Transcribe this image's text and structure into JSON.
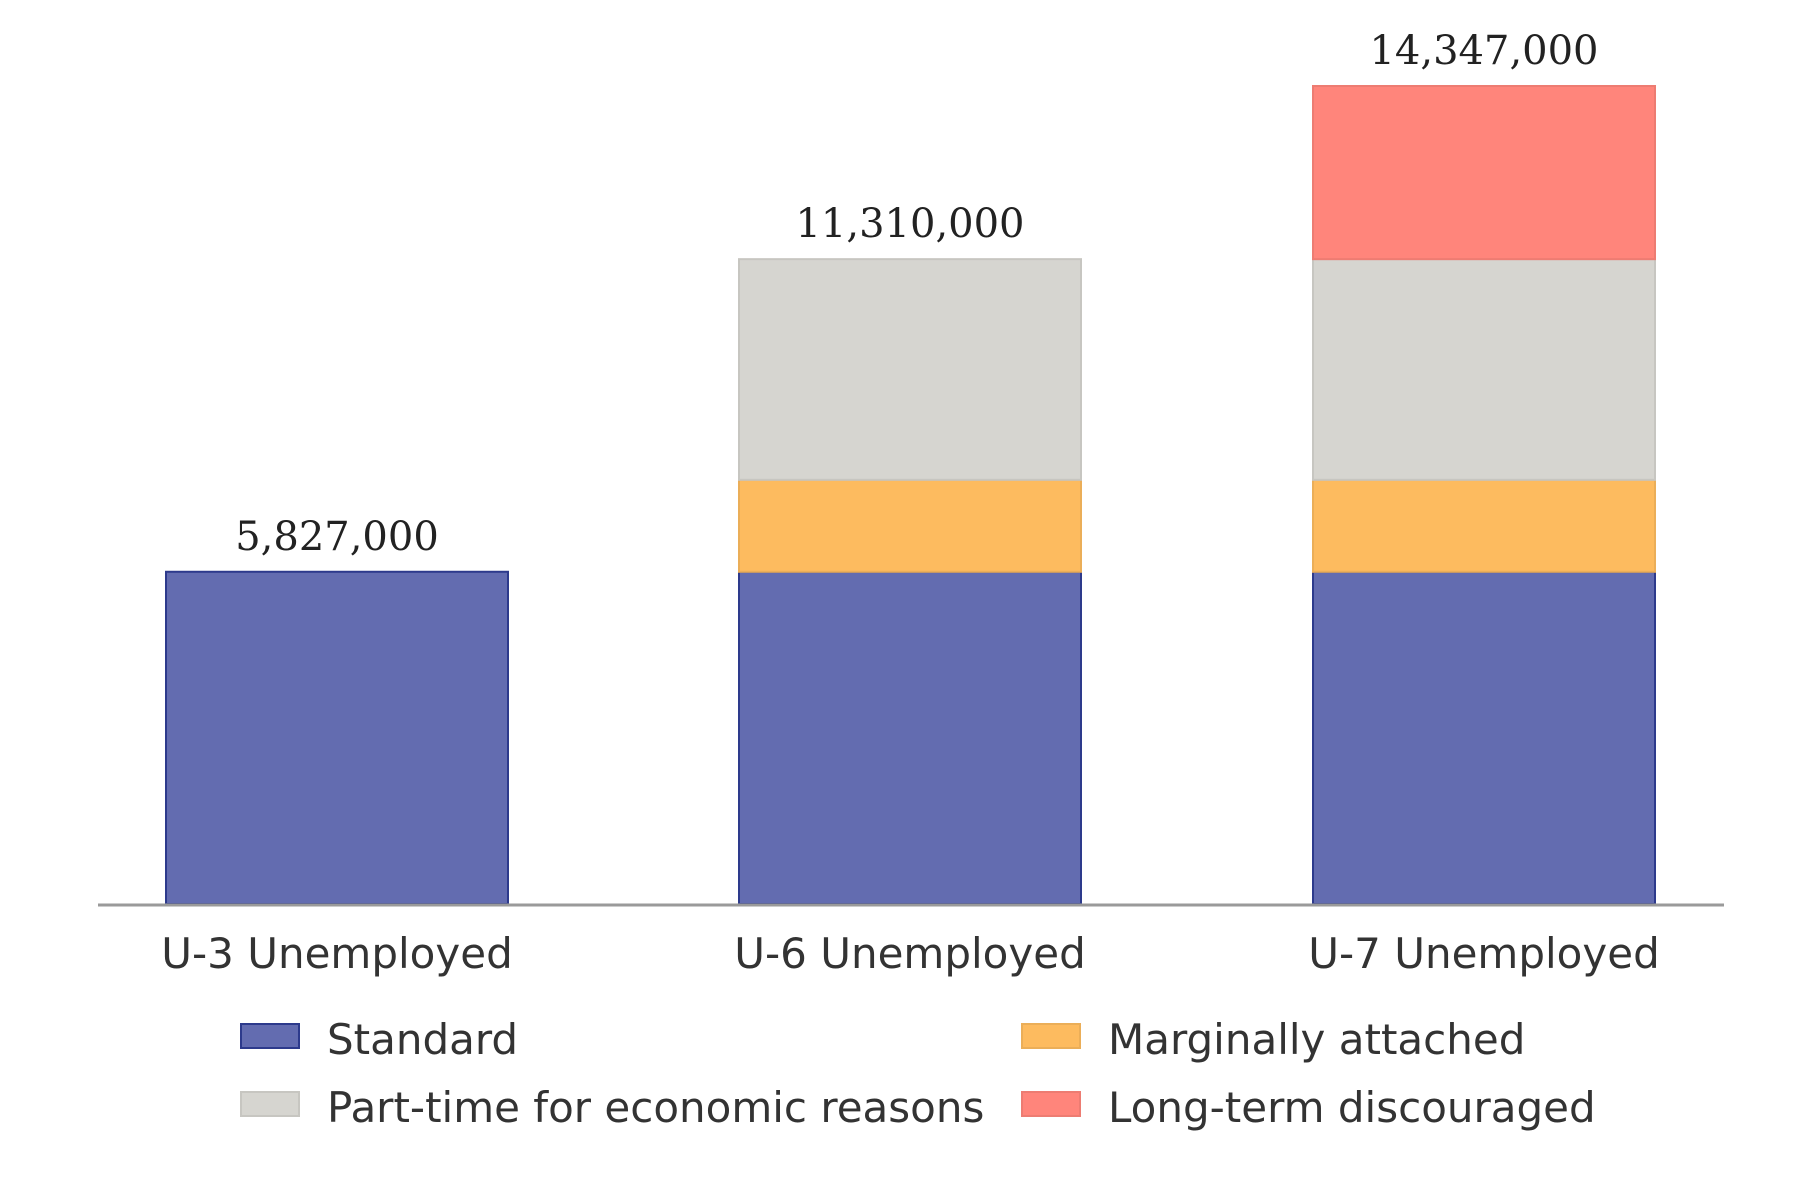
{
  "chart_data": {
    "type": "bar",
    "stacked": true,
    "categories": [
      "U-3 Unemployed",
      "U-6 Unemployed",
      "U-7 Unemployed"
    ],
    "series": [
      {
        "name": "Standard",
        "color": "#636cb0",
        "values": [
          5827000,
          5827000,
          5827000
        ]
      },
      {
        "name": "Marginally attached",
        "color": "#fdbb5f",
        "values": [
          0,
          1613000,
          1613000
        ]
      },
      {
        "name": "Part-time for economic reasons",
        "color": "#d6d5d0",
        "values": [
          0,
          3870000,
          3870000
        ]
      },
      {
        "name": "Long-term discouraged",
        "color": "#ff857b",
        "values": [
          0,
          0,
          3037000
        ]
      }
    ],
    "totals": [
      5827000,
      11310000,
      14347000
    ],
    "total_labels": [
      "5,827,000",
      "11,310,000",
      "14,347,000"
    ],
    "ylim": [
      0,
      14347000
    ],
    "grid": false,
    "legend": {
      "placement": "bottom",
      "order": [
        "Standard",
        "Marginally attached",
        "Part-time for economic reasons",
        "Long-term discouraged"
      ]
    }
  }
}
